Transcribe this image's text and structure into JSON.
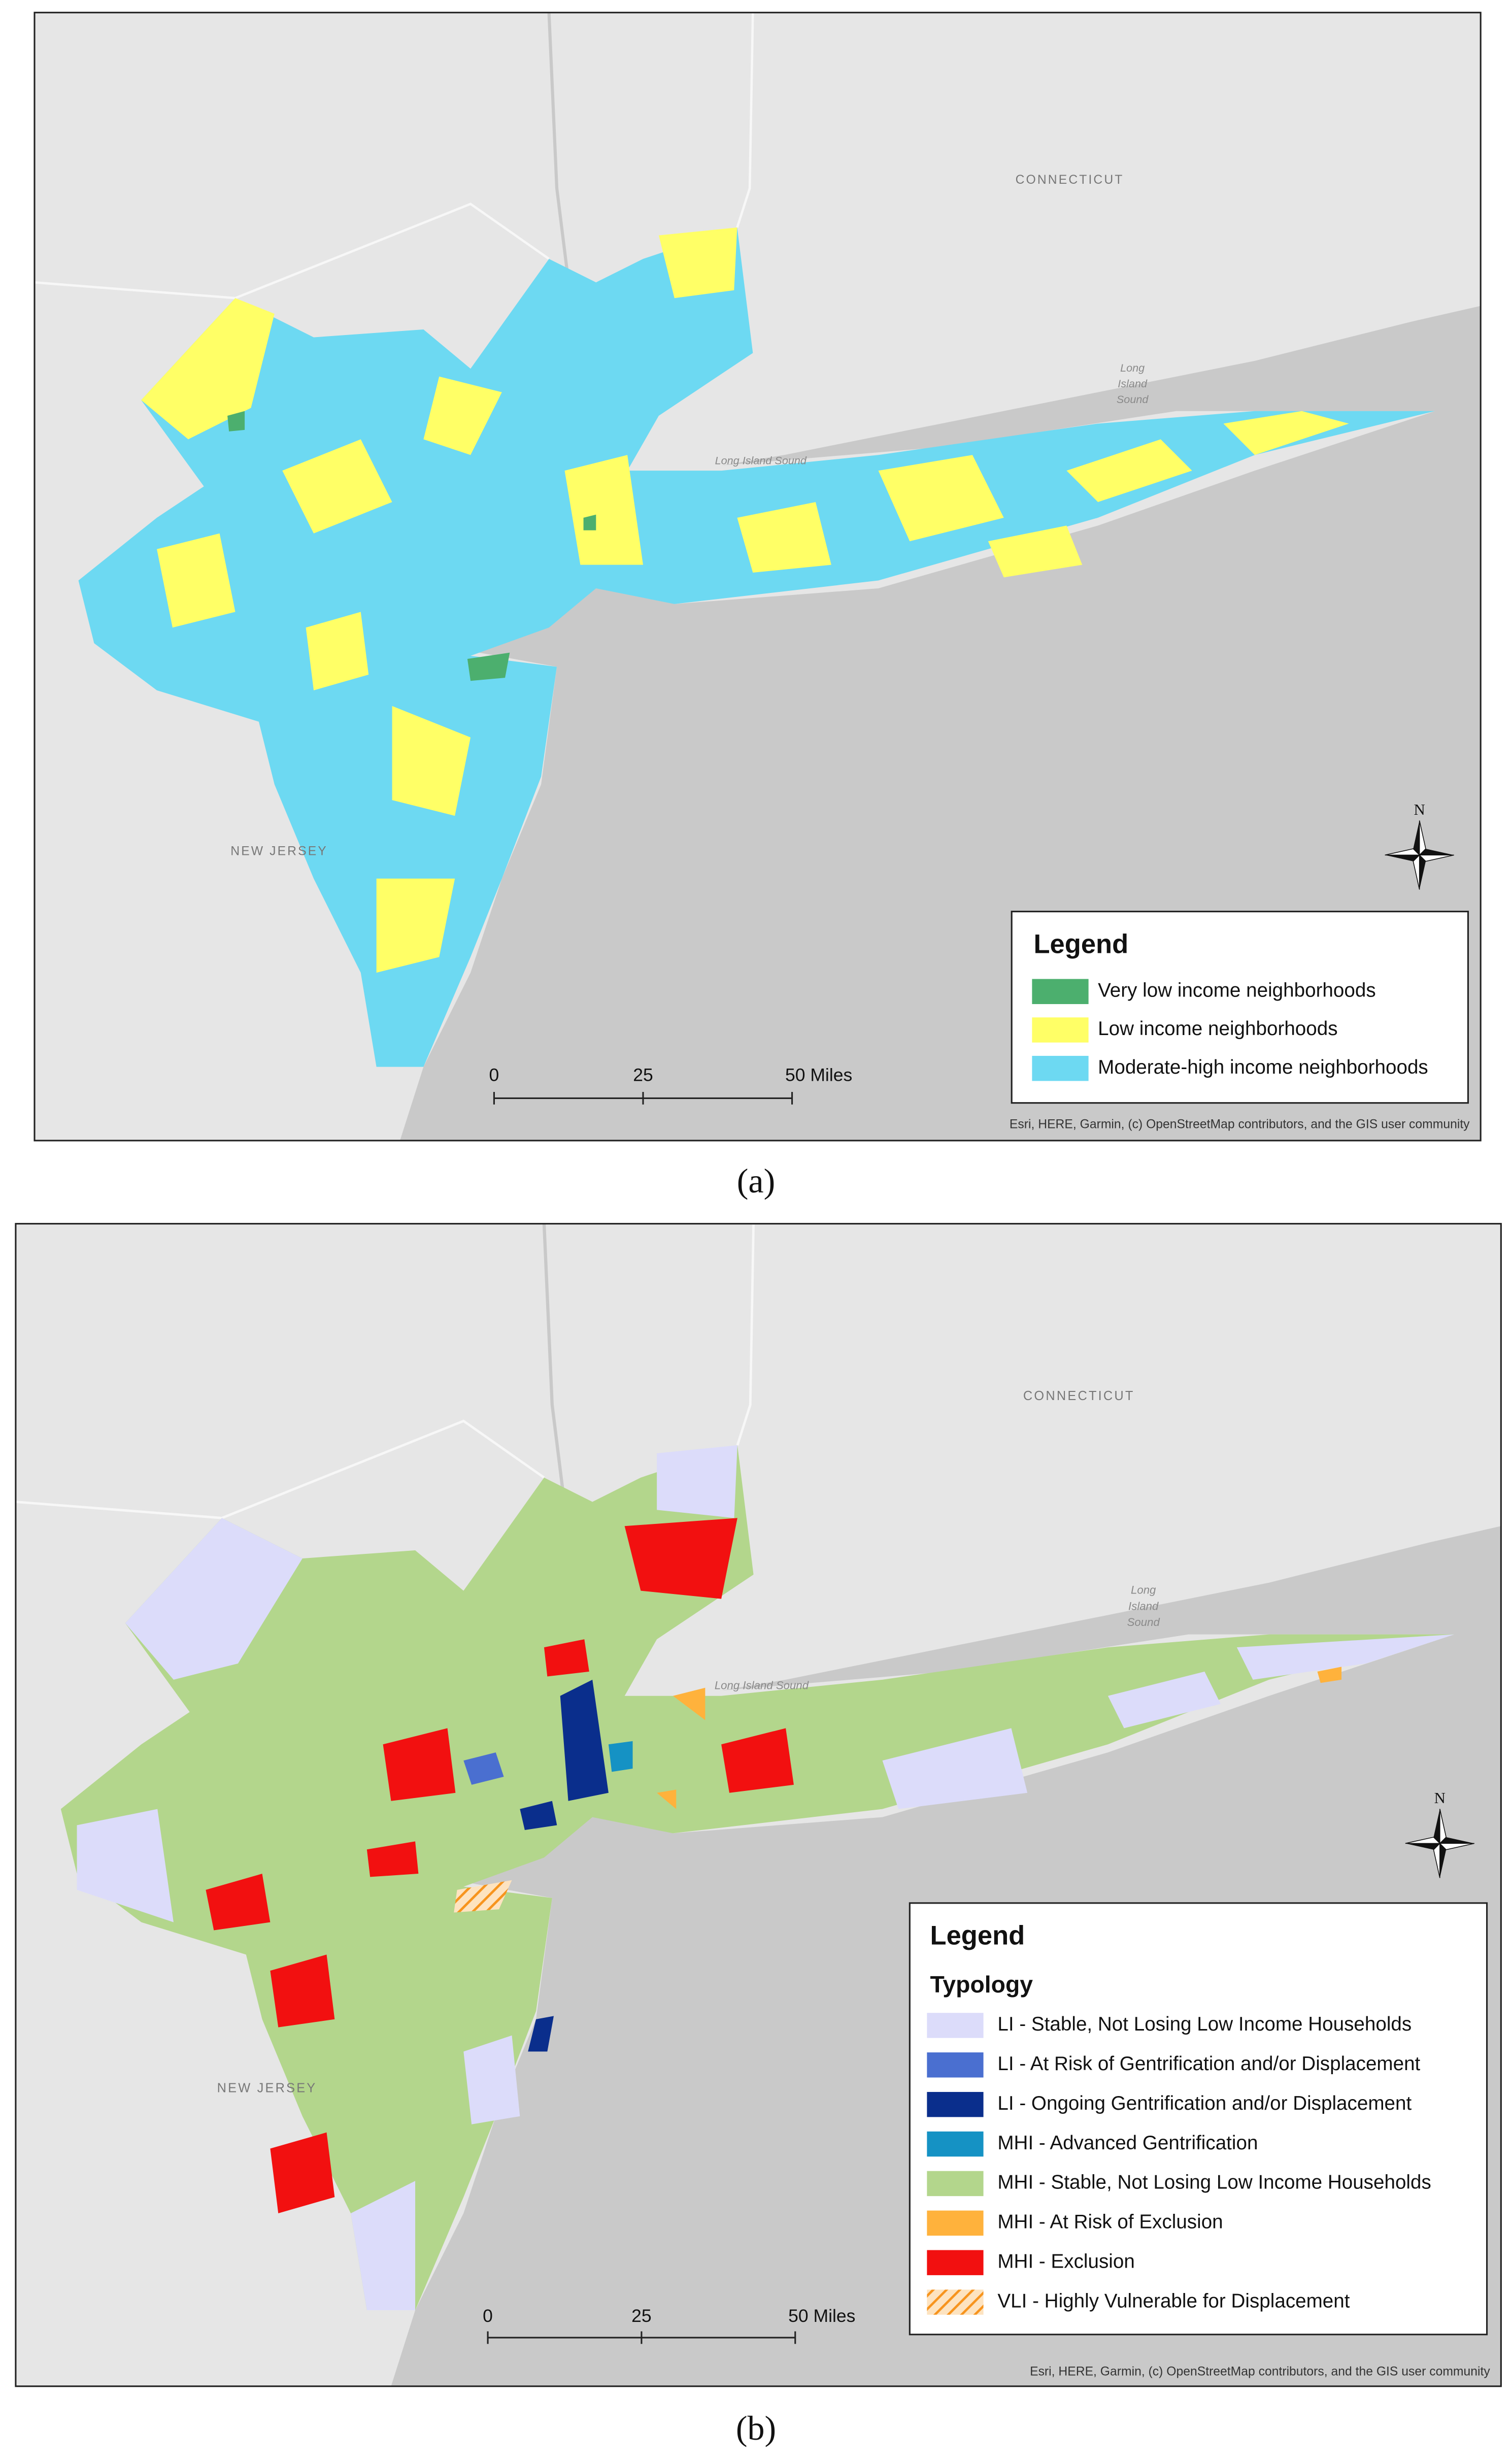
{
  "panels": [
    {
      "label": "(a)",
      "legend": {
        "title": "Legend",
        "items": [
          {
            "label": "Very low income neighborhoods",
            "color": "#4caf6e"
          },
          {
            "label": "Low income neighborhoods",
            "color": "#ffff66"
          },
          {
            "label": "Moderate-high income neighborhoods",
            "color": "#6dd9f2"
          }
        ]
      },
      "scale_bar": [
        "0",
        "25",
        "50 Miles"
      ],
      "north": "N",
      "attribution": "Esri, HERE, Garmin, (c) OpenStreetMap contributors, and the GIS user community",
      "places": {
        "connecticut": "CONNECTICUT",
        "new_jersey": "NEW JERSEY",
        "sound": "Long Island Sound",
        "sound_stacked": [
          "Long",
          "Island",
          "Sound"
        ]
      }
    },
    {
      "label": "(b)",
      "legend": {
        "title": "Legend",
        "subtitle": "Typology",
        "items": [
          {
            "label": "LI - Stable, Not Losing Low Income Households",
            "color": "#dcdcfa"
          },
          {
            "label": "LI - At Risk of Gentrification and/or Displacement",
            "color": "#4a6fd0"
          },
          {
            "label": "LI - Ongoing Gentrification and/or Displacement",
            "color": "#0a2e8c"
          },
          {
            "label": "MHI - Advanced Gentrification",
            "color": "#1592c4"
          },
          {
            "label": "MHI - Stable, Not Losing Low Income Households",
            "color": "#b3d68c"
          },
          {
            "label": "MHI - At Risk of Exclusion",
            "color": "#ffb23c"
          },
          {
            "label": "MHI - Exclusion",
            "color": "#f21010"
          },
          {
            "label": "VLI - Highly Vulnerable for Displacement",
            "color": "#f7941d",
            "hatched": true
          }
        ]
      },
      "scale_bar": [
        "0",
        "25",
        "50 Miles"
      ],
      "north": "N",
      "attribution": "Esri, HERE, Garmin, (c) OpenStreetMap contributors, and the GIS user community",
      "places": {
        "connecticut": "CONNECTICUT",
        "new_jersey": "NEW JERSEY",
        "sound": "Long Island Sound",
        "sound_stacked": [
          "Long",
          "Island",
          "Sound"
        ]
      }
    }
  ]
}
